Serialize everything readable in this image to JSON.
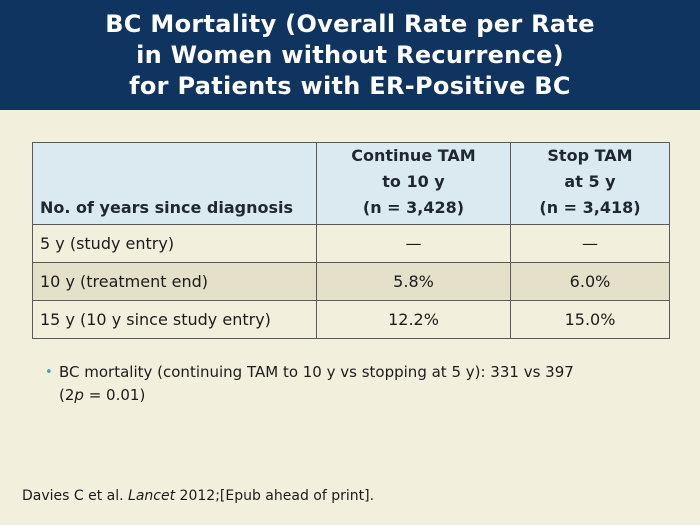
{
  "header": {
    "title_lines": [
      "BC Mortality (Overall Rate per Rate",
      "in Women without Recurrence)",
      "for Patients with ER-Positive BC"
    ]
  },
  "table": {
    "header_label": "No. of years since diagnosis",
    "col1_lines": [
      "Continue TAM",
      "to 10 y",
      "(n = 3,428)"
    ],
    "col2_lines": [
      "Stop TAM",
      "at 5 y",
      "(n = 3,418)"
    ],
    "rows": [
      {
        "label": "5 y (study entry)",
        "continue": "—",
        "stop": "—"
      },
      {
        "label": "10 y (treatment end)",
        "continue": "5.8%",
        "stop": "6.0%"
      },
      {
        "label": "15 y (10 y since study entry)",
        "continue": "12.2%",
        "stop": "15.0%"
      }
    ]
  },
  "bullet": {
    "marker": "•",
    "line1": "BC mortality (continuing TAM to 10 y vs stopping at 5 y): 331 vs 397",
    "line2_prefix": "(2",
    "line2_italic": "p",
    "line2_suffix": " = 0.01)"
  },
  "citation": {
    "prefix": "Davies C et al. ",
    "journal": "Lancet",
    "suffix": " 2012;[Epub ahead of print]."
  }
}
